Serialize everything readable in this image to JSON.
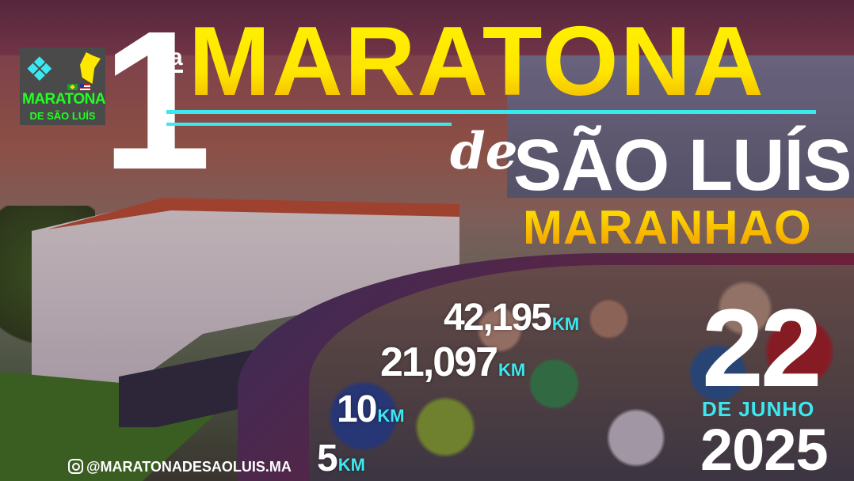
{
  "logo": {
    "line1": "MARATONA",
    "line2": "DE SÃO LUÍS"
  },
  "title": {
    "ordinal": "1",
    "ordinal_suffix": "a",
    "event": "MARATONA",
    "connector": "de",
    "city": "SÃO LUÍS",
    "state": "MARANHAO"
  },
  "distances": [
    {
      "value": "42,195",
      "unit": "KM"
    },
    {
      "value": "21,097",
      "unit": "KM"
    },
    {
      "value": "10",
      "unit": "KM"
    },
    {
      "value": "5",
      "unit": "KM"
    }
  ],
  "date": {
    "day": "22",
    "month": "DE JUNHO",
    "year": "2025"
  },
  "social": {
    "icon": "instagram-icon",
    "handle": "@MARATONADESAOLUIS.MA"
  },
  "colors": {
    "accent_cyan": "#3ce8f0",
    "title_yellow": "#fff200",
    "logo_green": "#22ff22"
  }
}
